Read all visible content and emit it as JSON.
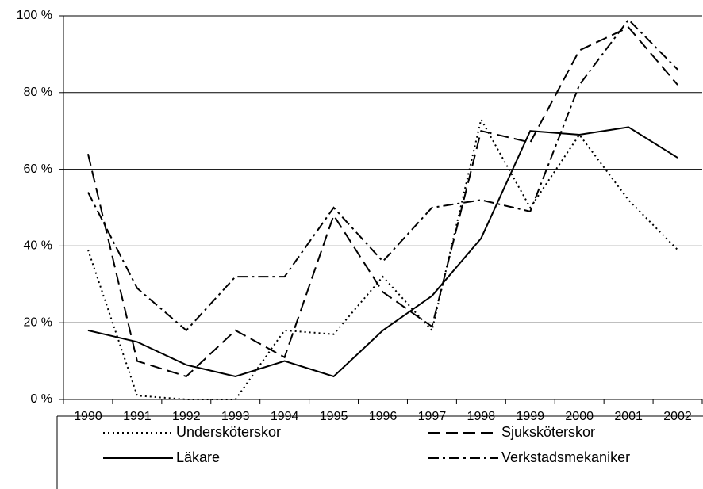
{
  "chart_data": {
    "type": "line",
    "categories": [
      "1990",
      "1991",
      "1992",
      "1993",
      "1994",
      "1995",
      "1996",
      "1997",
      "1998",
      "1999",
      "2000",
      "2001",
      "2002"
    ],
    "series": [
      {
        "name": "Undersköterskor",
        "color": "#000000",
        "dash": "dotted",
        "values": [
          39,
          1,
          0,
          0,
          18,
          17,
          32,
          18,
          73,
          50,
          69,
          52,
          39
        ]
      },
      {
        "name": "Sjuksköterskor",
        "color": "#000000",
        "dash": "dashed",
        "values": [
          64,
          10,
          6,
          18,
          11,
          48,
          28,
          19,
          70,
          67,
          91,
          97,
          82
        ]
      },
      {
        "name": "Läkare",
        "color": "#000000",
        "dash": "solid",
        "values": [
          18,
          15,
          9,
          6,
          10,
          6,
          18,
          27,
          42,
          70,
          69,
          71,
          63
        ]
      },
      {
        "name": "Verkstadsmekaniker",
        "color": "#000000",
        "dash": "dashdot",
        "values": [
          54,
          29,
          18,
          32,
          32,
          50,
          36,
          50,
          52,
          49,
          82,
          99,
          86
        ]
      }
    ],
    "ylim": [
      0,
      100
    ],
    "yticks": [
      {
        "value": 0,
        "label": "0 %"
      },
      {
        "value": 20,
        "label": "20 %"
      },
      {
        "value": 40,
        "label": "40 %"
      },
      {
        "value": 60,
        "label": "60 %"
      },
      {
        "value": 80,
        "label": "80 %"
      },
      {
        "value": 100,
        "label": "100 %"
      }
    ],
    "grid": true,
    "legend": "bottom"
  }
}
